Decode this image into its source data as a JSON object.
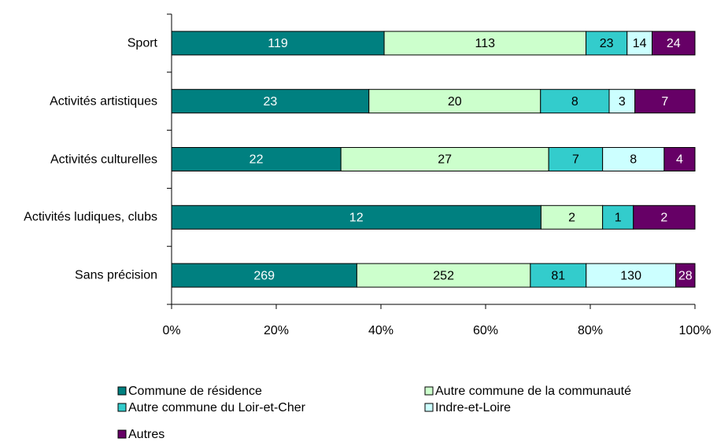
{
  "chart_data": {
    "type": "bar",
    "orientation": "horizontal",
    "stacking": "percent",
    "categories": [
      "Sport",
      "Activités artistiques",
      "Activités culturelles",
      "Activités ludiques, clubs",
      "Sans précision"
    ],
    "series": [
      {
        "name": "Commune de résidence",
        "color": "#008080",
        "values": [
          119,
          23,
          22,
          12,
          269
        ]
      },
      {
        "name": "Autre commune de la communauté",
        "color": "#ccffcc",
        "values": [
          113,
          20,
          27,
          2,
          252
        ]
      },
      {
        "name": "Autre commune du Loir-et-Cher",
        "color": "#33cccc",
        "values": [
          23,
          8,
          7,
          1,
          81
        ]
      },
      {
        "name": "Indre-et-Loire",
        "color": "#ccffff",
        "values": [
          14,
          3,
          8,
          null,
          130
        ]
      },
      {
        "name": "Autres",
        "color": "#660066",
        "values": [
          24,
          7,
          4,
          2,
          28
        ]
      }
    ],
    "xlim": [
      0,
      100
    ],
    "xticks": [
      {
        "value": 0,
        "label": "0%"
      },
      {
        "value": 20,
        "label": "20%"
      },
      {
        "value": 40,
        "label": "40%"
      },
      {
        "value": 60,
        "label": "60%"
      },
      {
        "value": 80,
        "label": "80%"
      },
      {
        "value": 100,
        "label": "100%"
      }
    ],
    "legend": "bottom"
  }
}
